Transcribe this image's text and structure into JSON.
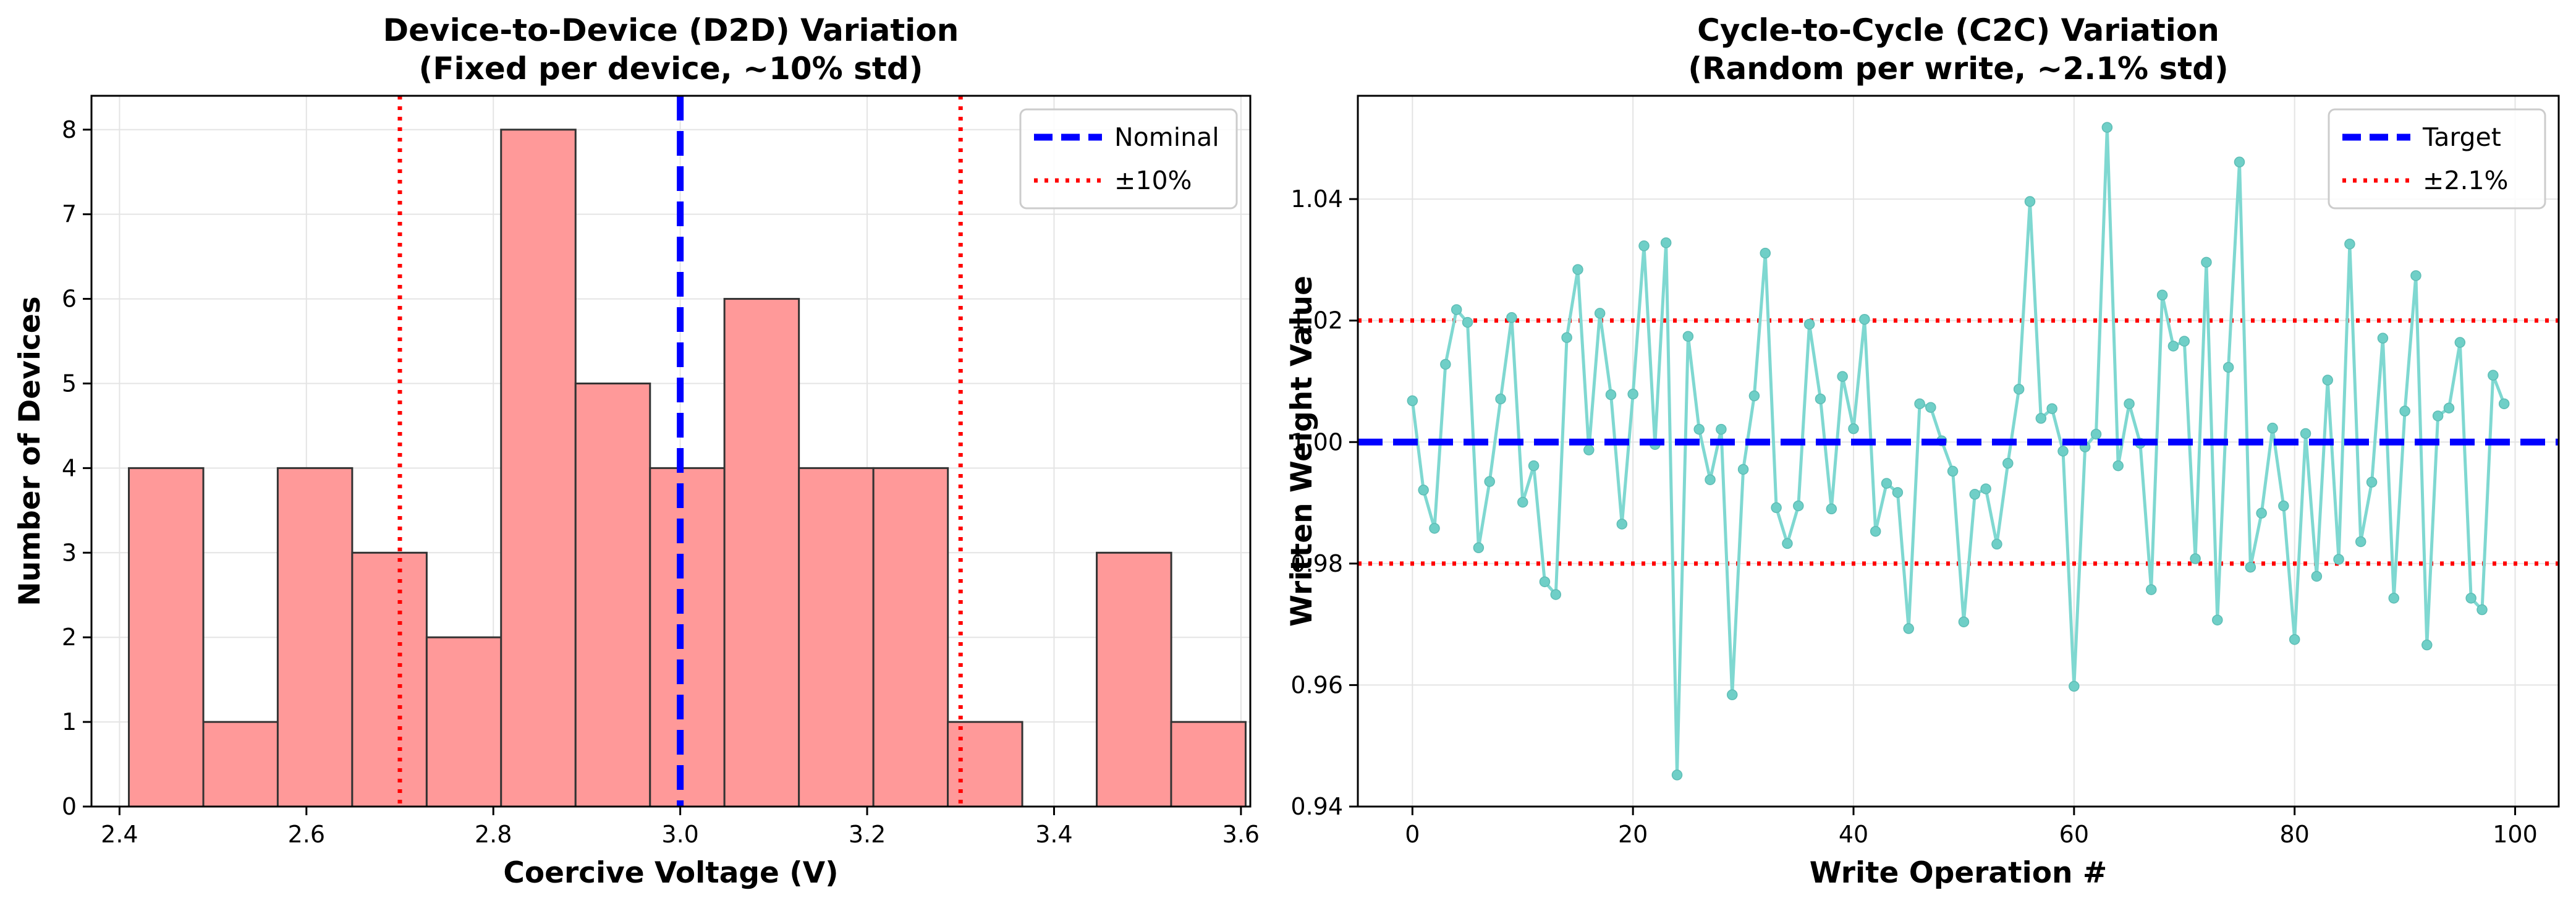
{
  "chart_data": [
    {
      "type": "bar",
      "title_line1": "Device-to-Device (D2D) Variation",
      "title_line2": "(Fixed per device, ~10% std)",
      "xlabel": "Coercive Voltage (V)",
      "ylabel": "Number of Devices",
      "xlim": [
        2.37,
        3.61
      ],
      "ylim": [
        0,
        8.4
      ],
      "xticks": [
        2.4,
        2.6,
        2.8,
        3.0,
        3.2,
        3.4,
        3.6
      ],
      "xtick_labels": [
        "2.4",
        "2.6",
        "2.8",
        "3.0",
        "3.2",
        "3.4",
        "3.6"
      ],
      "yticks": [
        0,
        1,
        2,
        3,
        4,
        5,
        6,
        7,
        8
      ],
      "ytick_labels": [
        "0",
        "1",
        "2",
        "3",
        "4",
        "5",
        "6",
        "7",
        "8"
      ],
      "bins": [
        2.41,
        2.4897,
        2.5693,
        2.649,
        2.7287,
        2.8083,
        2.888,
        2.9677,
        3.0473,
        3.127,
        3.2067,
        3.2863,
        3.366,
        3.4457,
        3.5253
      ],
      "bin_width": 0.0797,
      "counts": [
        4,
        1,
        4,
        3,
        2,
        8,
        5,
        4,
        6,
        4,
        4,
        1,
        0,
        3,
        1
      ],
      "bar_color": "#ff9999",
      "bar_edge": "#333333",
      "reference_lines": [
        {
          "name": "Nominal",
          "x": 3.0,
          "color": "#0000ff",
          "style": "dashed"
        },
        {
          "name": "±10%",
          "x": 2.7,
          "color": "#ff0000",
          "style": "dotted"
        },
        {
          "name": "±10%",
          "x": 3.3,
          "color": "#ff0000",
          "style": "dotted"
        }
      ],
      "legend": [
        {
          "label": "Nominal",
          "color": "#0000ff",
          "style": "dashed"
        },
        {
          "label": "±10%",
          "color": "#ff0000",
          "style": "dotted"
        }
      ],
      "legend_position": "top-right",
      "grid": true
    },
    {
      "type": "line",
      "title_line1": "Cycle-to-Cycle (C2C) Variation",
      "title_line2": "(Random per write, ~2.1% std)",
      "xlabel": "Write Operation #",
      "ylabel": "Written Weight Value",
      "xlim": [
        -4.95,
        103.95
      ],
      "ylim": [
        0.94,
        1.057
      ],
      "xticks": [
        0,
        20,
        40,
        60,
        80,
        100
      ],
      "xtick_labels": [
        "0",
        "20",
        "40",
        "60",
        "80",
        "100"
      ],
      "yticks": [
        0.94,
        0.96,
        0.98,
        1.0,
        1.02,
        1.04
      ],
      "ytick_labels": [
        "0.94",
        "0.96",
        "0.98",
        "1.00",
        "1.02",
        "1.04"
      ],
      "series_color": "#7fd8d1",
      "values": [
        1.0068,
        0.9921,
        0.9858,
        1.0128,
        1.0218,
        1.0197,
        0.9826,
        0.9935,
        1.0071,
        1.0205,
        0.9901,
        0.9961,
        0.977,
        0.9749,
        1.0172,
        1.0284,
        0.9987,
        1.0212,
        1.0078,
        0.9865,
        1.0079,
        1.0323,
        0.9996,
        1.0328,
        0.9452,
        1.0174,
        1.0021,
        0.9938,
        1.0021,
        0.9584,
        0.9955,
        1.0076,
        1.0311,
        0.9892,
        0.9833,
        0.9895,
        1.0194,
        1.0071,
        0.989,
        1.0108,
        1.0022,
        1.0202,
        0.9853,
        0.9932,
        0.9917,
        0.9693,
        1.0063,
        1.0057,
        1.0002,
        0.9952,
        0.9704,
        0.9914,
        0.9923,
        0.9832,
        0.9965,
        1.0087,
        1.0396,
        1.0039,
        1.0055,
        0.9985,
        0.9598,
        0.9992,
        1.0013,
        1.0518,
        0.9961,
        1.0063,
        0.9998,
        0.9757,
        1.0242,
        1.0158,
        1.0166,
        0.9808,
        1.0296,
        0.9707,
        1.0123,
        1.0461,
        0.9794,
        0.9883,
        1.0023,
        0.9895,
        0.9675,
        1.0014,
        0.9779,
        1.0102,
        0.9807,
        1.0326,
        0.9836,
        0.9934,
        1.0171,
        0.9743,
        1.0051,
        1.0274,
        0.9666,
        1.0043,
        1.0056,
        1.0164,
        0.9743,
        0.9724,
        1.011,
        1.0063
      ],
      "reference_lines": [
        {
          "name": "Target",
          "y": 1.0,
          "color": "#0000ff",
          "style": "dashed"
        },
        {
          "name": "±2.1%",
          "y": 1.02,
          "color": "#ff0000",
          "style": "dotted"
        },
        {
          "name": "±2.1%",
          "y": 0.98,
          "color": "#ff0000",
          "style": "dotted"
        }
      ],
      "legend": [
        {
          "label": "Target",
          "color": "#0000ff",
          "style": "dashed"
        },
        {
          "label": "±2.1%",
          "color": "#ff0000",
          "style": "dotted"
        }
      ],
      "legend_position": "top-right",
      "grid": true
    }
  ]
}
